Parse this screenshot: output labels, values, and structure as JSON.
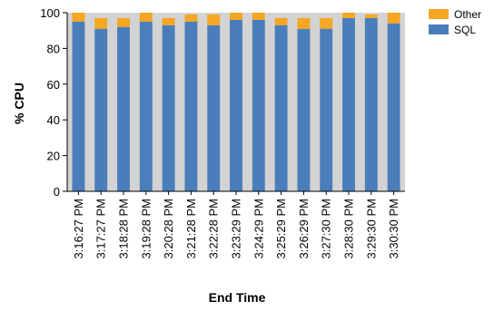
{
  "chart_data": {
    "type": "bar",
    "stacked": true,
    "title": "",
    "xlabel": "End Time",
    "ylabel": "% CPU",
    "ylim": [
      0,
      100
    ],
    "yticks": [
      0,
      20,
      40,
      60,
      80,
      100
    ],
    "grid": false,
    "legend_position": "top-right",
    "plot_background": "#d3d3d3",
    "categories": [
      "3:16:27 PM",
      "3:17:27 PM",
      "3:18:28 PM",
      "3:19:28 PM",
      "3:20:28 PM",
      "3:21:28 PM",
      "3:22:28 PM",
      "3:23:29 PM",
      "3:24:29 PM",
      "3:25:29 PM",
      "3:26:29 PM",
      "3:27:30 PM",
      "3:28:30 PM",
      "3:29:30 PM",
      "3:30:30 PM"
    ],
    "series": [
      {
        "name": "SQL",
        "color": "#4a7ebb",
        "values": [
          95,
          91,
          92,
          95,
          93,
          95,
          93,
          96,
          96,
          93,
          91,
          91,
          97,
          97,
          94
        ]
      },
      {
        "name": "Other",
        "color": "#f5a623",
        "values": [
          5,
          6,
          5,
          5,
          4,
          4,
          6,
          4,
          4,
          4,
          6,
          6,
          3,
          2,
          6
        ]
      }
    ],
    "legend_order": [
      "Other",
      "SQL"
    ]
  }
}
